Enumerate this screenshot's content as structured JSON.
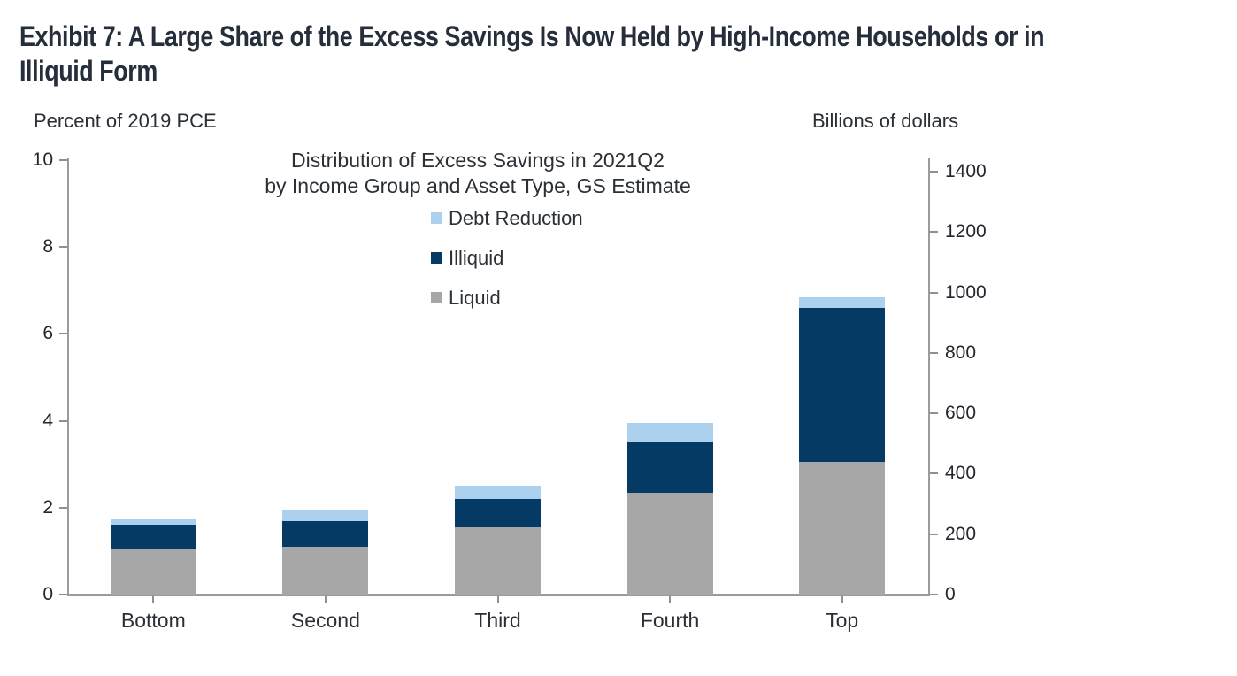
{
  "exhibit": {
    "title_line1": "Exhibit 7: A Large Share of the Excess Savings Is Now Held by High-Income Households or in",
    "title_line2": "Illiquid Form"
  },
  "chart_data": {
    "type": "bar",
    "stacked": true,
    "title_line1": "Distribution of Excess Savings in 2021Q2",
    "title_line2": "by Income Group and Asset Type, GS Estimate",
    "left_axis": {
      "label": "Percent of 2019 PCE",
      "ticks": [
        0,
        2,
        4,
        6,
        8,
        10
      ],
      "range": [
        0,
        10
      ]
    },
    "right_axis": {
      "label": "Billions of dollars",
      "ticks": [
        0,
        200,
        400,
        600,
        800,
        1000,
        1200,
        1400
      ],
      "range": [
        0,
        1437
      ]
    },
    "categories": [
      "Bottom",
      "Second",
      "Third",
      "Fourth",
      "Top"
    ],
    "series": [
      {
        "name": "Liquid",
        "color": "#A7A7A7",
        "values": [
          1.05,
          1.1,
          1.55,
          2.35,
          3.05
        ]
      },
      {
        "name": "Illiquid",
        "color": "#043A63",
        "values": [
          0.55,
          0.6,
          0.65,
          1.15,
          3.55
        ]
      },
      {
        "name": "Debt Reduction",
        "color": "#ABD1EE",
        "values": [
          0.15,
          0.25,
          0.3,
          0.45,
          0.25
        ]
      }
    ],
    "totals": [
      1.75,
      1.95,
      2.5,
      3.95,
      6.85
    ],
    "legend_order": [
      "Debt Reduction",
      "Illiquid",
      "Liquid"
    ],
    "legend_position": "inside-top-center",
    "grid": false,
    "colors": {
      "title_text": "#252E3A",
      "axis_text": "#2B2F36",
      "axis_line": "#9B9B9B"
    }
  }
}
